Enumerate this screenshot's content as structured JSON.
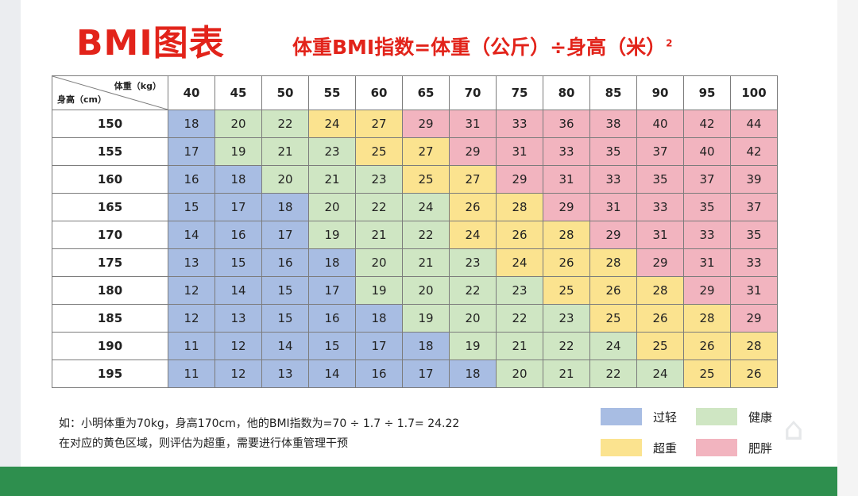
{
  "title": "BMI图表",
  "formula": "体重BMI指数=体重（公斤）÷身高（米）",
  "formula_sup": "2",
  "corner": {
    "weight_label": "体重（kg）",
    "height_label": "身高（cm）"
  },
  "colors": {
    "underweight": "#a8bde3",
    "normal": "#cfe6c3",
    "overweight": "#fbe38f",
    "obese": "#f2b4bf",
    "title": "#e2231a",
    "footer": "#2e8f4e"
  },
  "chart_data": {
    "type": "heatmap",
    "x": [
      40,
      45,
      50,
      55,
      60,
      65,
      70,
      75,
      80,
      85,
      90,
      95,
      100
    ],
    "y": [
      150,
      155,
      160,
      165,
      170,
      175,
      180,
      185,
      190,
      195
    ],
    "values": [
      [
        18,
        20,
        22,
        24,
        27,
        29,
        31,
        33,
        36,
        38,
        40,
        42,
        44
      ],
      [
        17,
        19,
        21,
        23,
        25,
        27,
        29,
        31,
        33,
        35,
        37,
        40,
        42
      ],
      [
        16,
        18,
        20,
        21,
        23,
        25,
        27,
        29,
        31,
        33,
        35,
        37,
        39
      ],
      [
        15,
        17,
        18,
        20,
        22,
        24,
        26,
        28,
        29,
        31,
        33,
        35,
        37
      ],
      [
        14,
        16,
        17,
        19,
        21,
        22,
        24,
        26,
        28,
        29,
        31,
        33,
        35
      ],
      [
        13,
        15,
        16,
        18,
        20,
        21,
        23,
        24,
        26,
        28,
        29,
        31,
        33
      ],
      [
        12,
        14,
        15,
        17,
        19,
        20,
        22,
        23,
        25,
        26,
        28,
        29,
        31
      ],
      [
        12,
        13,
        15,
        16,
        18,
        19,
        20,
        22,
        23,
        25,
        26,
        28,
        29
      ],
      [
        11,
        12,
        14,
        15,
        17,
        18,
        19,
        21,
        22,
        24,
        25,
        26,
        28
      ],
      [
        11,
        12,
        13,
        14,
        16,
        17,
        18,
        20,
        21,
        22,
        24,
        25,
        26
      ]
    ],
    "categories_grid": [
      [
        "u",
        "n",
        "n",
        "o",
        "o",
        "b",
        "b",
        "b",
        "b",
        "b",
        "b",
        "b",
        "b"
      ],
      [
        "u",
        "n",
        "n",
        "n",
        "o",
        "o",
        "b",
        "b",
        "b",
        "b",
        "b",
        "b",
        "b"
      ],
      [
        "u",
        "u",
        "n",
        "n",
        "n",
        "o",
        "o",
        "b",
        "b",
        "b",
        "b",
        "b",
        "b"
      ],
      [
        "u",
        "u",
        "u",
        "n",
        "n",
        "n",
        "o",
        "o",
        "b",
        "b",
        "b",
        "b",
        "b"
      ],
      [
        "u",
        "u",
        "u",
        "n",
        "n",
        "n",
        "o",
        "o",
        "o",
        "b",
        "b",
        "b",
        "b"
      ],
      [
        "u",
        "u",
        "u",
        "u",
        "n",
        "n",
        "n",
        "o",
        "o",
        "o",
        "b",
        "b",
        "b"
      ],
      [
        "u",
        "u",
        "u",
        "u",
        "n",
        "n",
        "n",
        "n",
        "o",
        "o",
        "o",
        "b",
        "b"
      ],
      [
        "u",
        "u",
        "u",
        "u",
        "u",
        "n",
        "n",
        "n",
        "n",
        "o",
        "o",
        "o",
        "b"
      ],
      [
        "u",
        "u",
        "u",
        "u",
        "u",
        "u",
        "n",
        "n",
        "n",
        "n",
        "o",
        "o",
        "o"
      ],
      [
        "u",
        "u",
        "u",
        "u",
        "u",
        "u",
        "u",
        "n",
        "n",
        "n",
        "n",
        "o",
        "o"
      ]
    ],
    "legend": [
      {
        "key": "u",
        "label": "过轻"
      },
      {
        "key": "n",
        "label": "健康"
      },
      {
        "key": "o",
        "label": "超重"
      },
      {
        "key": "b",
        "label": "肥胖"
      }
    ]
  },
  "notes": [
    "如：小明体重为70kg，身高170cm，他的BMI指数为=70 ÷ 1.7 ÷ 1.7= 24.22",
    "在对应的黄色区域，则评估为超重，需要进行体重管理干预"
  ]
}
